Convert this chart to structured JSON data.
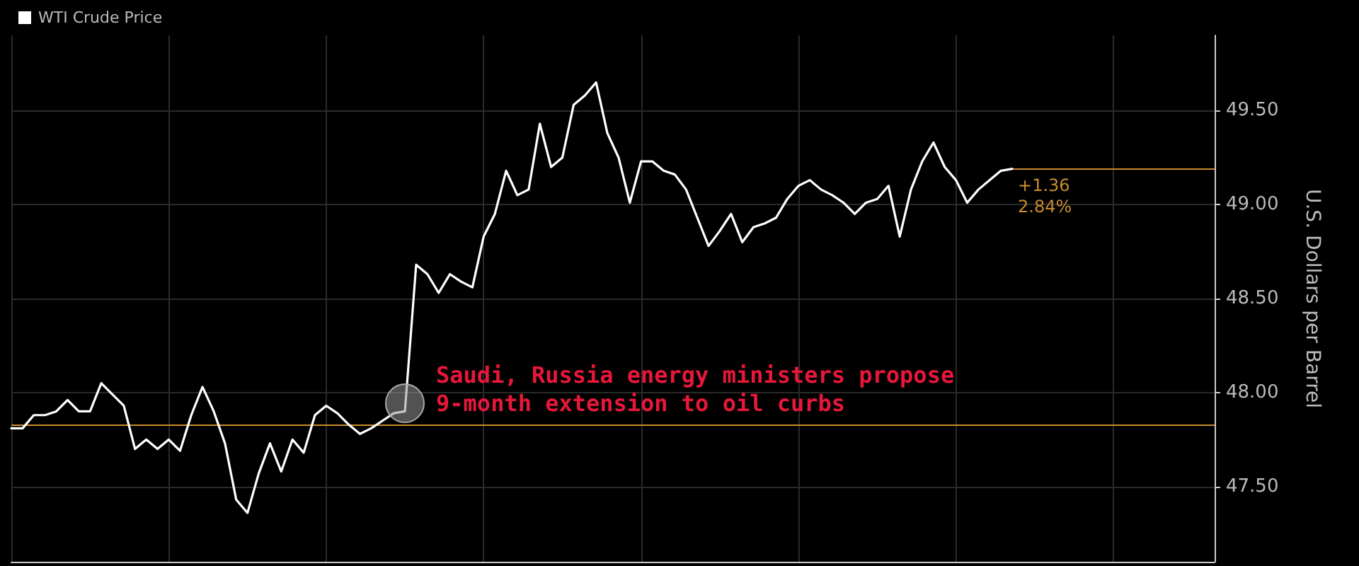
{
  "chart_data": {
    "type": "line",
    "categories": [
      null,
      null,
      null,
      null,
      null,
      null,
      null,
      null,
      null,
      null,
      null,
      null,
      null,
      null,
      null,
      null,
      null,
      null,
      null,
      null,
      null,
      null,
      null,
      null,
      null,
      null,
      null,
      null,
      null,
      null,
      null,
      null,
      null,
      null,
      null,
      null,
      null,
      null,
      null,
      null,
      null,
      null,
      null,
      null,
      null,
      null,
      null,
      null,
      null,
      null,
      null,
      null,
      null,
      null,
      null,
      null,
      null,
      null,
      null,
      null,
      null,
      null,
      null,
      null,
      null,
      null,
      null,
      null,
      null,
      null,
      null,
      null,
      null,
      null,
      null,
      null,
      null,
      null,
      null,
      null,
      null,
      null,
      null,
      null,
      null,
      null,
      null,
      null,
      null,
      null,
      null,
      null,
      null,
      null,
      null,
      null,
      null,
      null,
      null,
      null,
      null,
      null,
      null,
      null,
      null,
      null,
      null,
      null
    ],
    "series": [
      {
        "name": "WTI Crude Price",
        "color": "#ffffff",
        "values": [
          47.81,
          47.81,
          47.88,
          47.88,
          47.9,
          47.96,
          47.9,
          47.9,
          48.05,
          47.99,
          47.93,
          47.7,
          47.75,
          47.7,
          47.75,
          47.69,
          47.88,
          48.03,
          47.9,
          47.73,
          47.43,
          47.36,
          47.57,
          47.73,
          47.58,
          47.75,
          47.68,
          47.88,
          47.93,
          47.89,
          47.83,
          47.78,
          47.81,
          47.85,
          47.89,
          47.9,
          48.68,
          48.63,
          48.53,
          48.63,
          48.59,
          48.56,
          48.83,
          48.95,
          49.18,
          49.05,
          49.08,
          49.43,
          49.2,
          49.25,
          49.53,
          49.58,
          49.65,
          49.38,
          49.25,
          49.01,
          49.23,
          49.23,
          49.18,
          49.16,
          49.08,
          48.93,
          48.78,
          48.86,
          48.95,
          48.8,
          48.88,
          48.9,
          48.93,
          49.03,
          49.1,
          49.13,
          49.08,
          49.05,
          49.01,
          48.95,
          49.01,
          49.03,
          49.1,
          48.83,
          49.08,
          49.23,
          49.33,
          49.2,
          49.13,
          49.01,
          49.08,
          49.13,
          49.18,
          49.19,
          null,
          null,
          null,
          null,
          null,
          null,
          null,
          null,
          null,
          null,
          null,
          null,
          null,
          null,
          null,
          null,
          null,
          null
        ]
      }
    ],
    "ylabel": "U.S. Dollars per Barrel",
    "ylim": [
      47.1,
      49.9
    ],
    "yticks": [
      {
        "value": 47.5,
        "label": "47.50"
      },
      {
        "value": 48,
        "label": "48.00"
      },
      {
        "value": 48.5,
        "label": "48.50"
      },
      {
        "value": 49,
        "label": "49.00"
      },
      {
        "value": 49.5,
        "label": "49.50"
      }
    ],
    "ref_lines": [
      {
        "axis": "y",
        "value": 47.83,
        "label": null,
        "color": "#c98b2f"
      },
      {
        "axis": "y",
        "value": 49.19,
        "label": null,
        "color": "#c98b2f"
      }
    ],
    "annotations": [
      "Saudi, Russia energy ministers propose\n9-month extension to oil curbs",
      "+1.36\n2.84%"
    ],
    "grid": true,
    "legend": "top left",
    "tick_labels": "y"
  }
}
